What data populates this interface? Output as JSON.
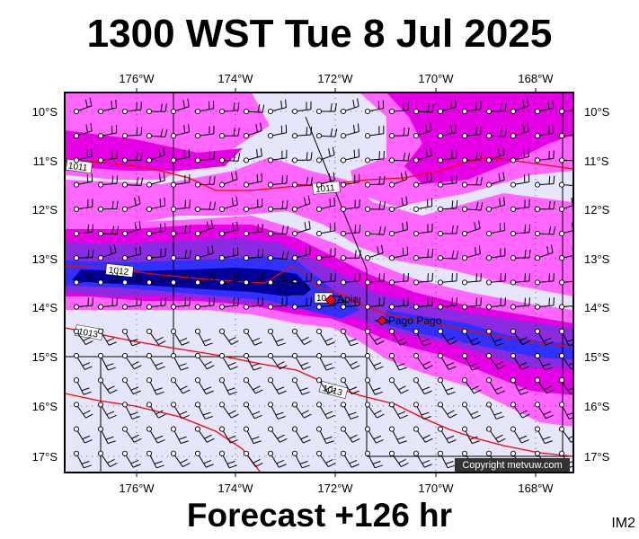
{
  "title": "1300 WST Tue 8 Jul 2025",
  "footer": "Forecast +126 hr",
  "corner_label": "IM2",
  "copyright": "Copyright metvuw.com",
  "lon_labels": [
    "176°W",
    "174°W",
    "172°W",
    "170°W",
    "168°W"
  ],
  "lat_labels": [
    "10°S",
    "11°S",
    "12°S",
    "13°S",
    "14°S",
    "15°S",
    "16°S",
    "17°S"
  ],
  "isobars": [
    {
      "label": "1011",
      "value": 1011
    },
    {
      "label": "1011",
      "value": 1011
    },
    {
      "label": "1012",
      "value": 1012
    },
    {
      "label": "1013",
      "value": 1013
    },
    {
      "label": "1013",
      "value": 1013
    }
  ],
  "places": [
    {
      "name": "Apia",
      "code": "10"
    },
    {
      "name": "Pago Pago"
    }
  ],
  "colors": {
    "background": "#e6e6fa",
    "rain_light": "#ff66ff",
    "rain_mid": "#e500e5",
    "rain_heavy": "#8a2be2",
    "rain_very_heavy": "#3030ff",
    "rain_extreme": "#000099",
    "isobar": "#ff0000",
    "barb": "#000000"
  }
}
